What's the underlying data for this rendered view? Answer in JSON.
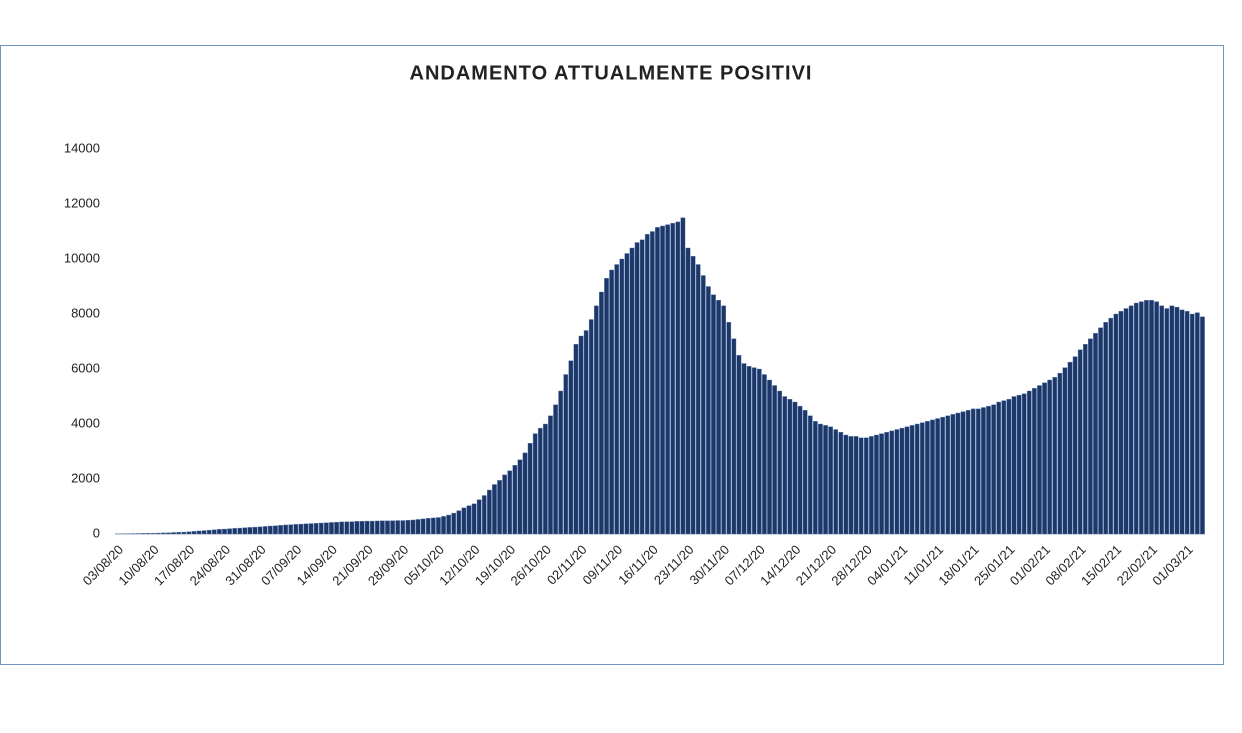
{
  "chart_data": {
    "type": "bar",
    "title": "ANDAMENTO ATTUALMENTE POSITIVI",
    "color": "#1d3768",
    "grid": false,
    "ylim": [
      0,
      14000
    ],
    "yticks": [
      0,
      2000,
      4000,
      6000,
      8000,
      10000,
      12000,
      14000
    ],
    "categories": [
      "03/08/20",
      null,
      null,
      null,
      null,
      null,
      null,
      "10/08/20",
      null,
      null,
      null,
      null,
      null,
      null,
      "17/08/20",
      null,
      null,
      null,
      null,
      null,
      null,
      "24/08/20",
      null,
      null,
      null,
      null,
      null,
      null,
      "31/08/20",
      null,
      null,
      null,
      null,
      null,
      null,
      "07/09/20",
      null,
      null,
      null,
      null,
      null,
      null,
      "14/09/20",
      null,
      null,
      null,
      null,
      null,
      null,
      "21/09/20",
      null,
      null,
      null,
      null,
      null,
      null,
      "28/09/20",
      null,
      null,
      null,
      null,
      null,
      null,
      "05/10/20",
      null,
      null,
      null,
      null,
      null,
      null,
      "12/10/20",
      null,
      null,
      null,
      null,
      null,
      null,
      "19/10/20",
      null,
      null,
      null,
      null,
      null,
      null,
      "26/10/20",
      null,
      null,
      null,
      null,
      null,
      null,
      "02/11/20",
      null,
      null,
      null,
      null,
      null,
      null,
      "09/11/20",
      null,
      null,
      null,
      null,
      null,
      null,
      "16/11/20",
      null,
      null,
      null,
      null,
      null,
      null,
      "23/11/20",
      null,
      null,
      null,
      null,
      null,
      null,
      "30/11/20",
      null,
      null,
      null,
      null,
      null,
      null,
      "07/12/20",
      null,
      null,
      null,
      null,
      null,
      null,
      "14/12/20",
      null,
      null,
      null,
      null,
      null,
      null,
      "21/12/20",
      null,
      null,
      null,
      null,
      null,
      null,
      "28/12/20",
      null,
      null,
      null,
      null,
      null,
      null,
      "04/01/21",
      null,
      null,
      null,
      null,
      null,
      null,
      "11/01/21",
      null,
      null,
      null,
      null,
      null,
      null,
      "18/01/21",
      null,
      null,
      null,
      null,
      null,
      null,
      "25/01/21",
      null,
      null,
      null,
      null,
      null,
      null,
      "01/02/21",
      null,
      null,
      null,
      null,
      null,
      null,
      "08/02/21",
      null,
      null,
      null,
      null,
      null,
      null,
      "15/02/21",
      null,
      null,
      null,
      null,
      null,
      null,
      "22/02/21",
      null,
      null,
      null,
      null,
      null,
      null,
      "01/03/21",
      null,
      null,
      null
    ],
    "values": [
      10,
      12,
      15,
      18,
      20,
      24,
      27,
      30,
      35,
      40,
      47,
      55,
      62,
      70,
      80,
      95,
      110,
      125,
      140,
      155,
      170,
      180,
      195,
      205,
      215,
      230,
      240,
      250,
      260,
      275,
      290,
      300,
      315,
      330,
      340,
      350,
      360,
      370,
      380,
      390,
      400,
      410,
      420,
      430,
      440,
      445,
      450,
      460,
      465,
      470,
      470,
      475,
      480,
      480,
      485,
      490,
      490,
      500,
      510,
      530,
      550,
      570,
      585,
      600,
      640,
      690,
      760,
      850,
      950,
      1030,
      1100,
      1250,
      1400,
      1600,
      1800,
      1950,
      2150,
      2300,
      2500,
      2700,
      2950,
      3300,
      3650,
      3850,
      4000,
      4300,
      4700,
      5200,
      5800,
      6300,
      6900,
      7200,
      7400,
      7800,
      8300,
      8800,
      9300,
      9600,
      9800,
      10000,
      10200,
      10400,
      10600,
      10700,
      10900,
      11000,
      11150,
      11200,
      11250,
      11300,
      11350,
      11500,
      10400,
      10100,
      9800,
      9400,
      9000,
      8700,
      8500,
      8300,
      7700,
      7100,
      6500,
      6200,
      6100,
      6050,
      6000,
      5800,
      5600,
      5400,
      5200,
      5000,
      4900,
      4800,
      4650,
      4500,
      4300,
      4100,
      4000,
      3950,
      3900,
      3800,
      3700,
      3600,
      3550,
      3550,
      3500,
      3500,
      3550,
      3600,
      3650,
      3700,
      3750,
      3800,
      3850,
      3900,
      3950,
      4000,
      4050,
      4100,
      4150,
      4200,
      4250,
      4300,
      4350,
      4400,
      4450,
      4500,
      4550,
      4550,
      4600,
      4650,
      4700,
      4800,
      4850,
      4900,
      5000,
      5050,
      5100,
      5200,
      5300,
      5400,
      5500,
      5600,
      5700,
      5850,
      6050,
      6250,
      6450,
      6700,
      6900,
      7100,
      7300,
      7500,
      7700,
      7850,
      8000,
      8100,
      8200,
      8300,
      8400,
      8450,
      8500,
      8500,
      8450,
      8300,
      8200,
      8300,
      8250,
      8150,
      8100,
      8000,
      8050,
      7900
    ]
  }
}
